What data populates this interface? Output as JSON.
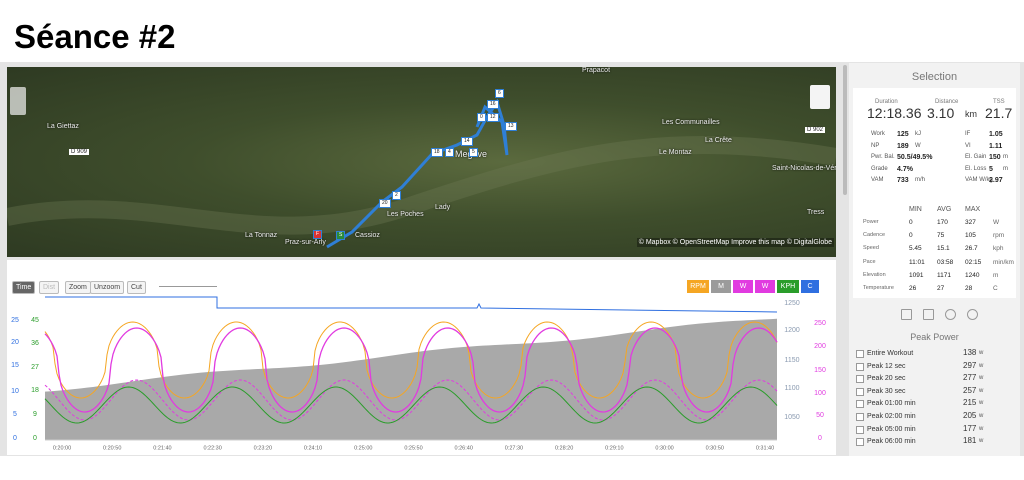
{
  "header": {
    "title": "Séance #2"
  },
  "map": {
    "places": [
      "Prapacot",
      "La Giettaz",
      "D 909",
      "Les Communailles",
      "La Crête",
      "Le Montaz",
      "D 902",
      "Saint-Nicolas-de-Véroce",
      "Megève",
      "Les Poches",
      "Lady",
      "Cassioz",
      "La Tonnaz",
      "Praz-sur-Arly",
      "Tress"
    ],
    "markers": [
      "6",
      "16",
      "0",
      "12",
      "13",
      "18",
      "4",
      "5",
      "14",
      "2",
      "20",
      "F",
      "S"
    ],
    "attribution": "© Mapbox © OpenStreetMap Improve this map © DigitalGlobe"
  },
  "toolbar": {
    "buttons": [
      "Time",
      "Dist",
      "Zoom",
      "Unzoom",
      "Cut"
    ],
    "channels": [
      "RPM",
      "M",
      "W",
      "W",
      "KPH",
      "C"
    ]
  },
  "chart": {
    "axes": {
      "speed": [
        25,
        20,
        15,
        10,
        5,
        0
      ],
      "cadence": [
        45,
        36,
        27,
        18,
        9,
        0
      ],
      "elevation": [
        1250,
        1200,
        1150,
        1100,
        1050
      ],
      "power": [
        250,
        200,
        150,
        100,
        50,
        0
      ]
    },
    "x_ticks": [
      "0:20:00",
      "0:20:50",
      "0:21:40",
      "0:22:30",
      "0:23:20",
      "0:24:10",
      "0:25:00",
      "0:25:50",
      "0:26:40",
      "0:27:30",
      "0:28:20",
      "0:29:10",
      "0:30:00",
      "0:30:50",
      "0:31:40"
    ]
  },
  "sidebar": {
    "title": "Selection",
    "summary": [
      {
        "label": "Duration",
        "value": "12:18.36",
        "unit": ""
      },
      {
        "label": "Distance",
        "value": "3.10",
        "unit": "km"
      },
      {
        "label": "TSS",
        "value": "21.7",
        "unit": ""
      }
    ],
    "metrics": [
      [
        "Work",
        "125",
        "kJ",
        "IF",
        "1.05",
        ""
      ],
      [
        "NP",
        "189",
        "W",
        "VI",
        "1.11",
        ""
      ],
      [
        "Pwr. Bal.",
        "50.5/49.5%",
        "",
        "El. Gain",
        "150",
        "m"
      ],
      [
        "Grade",
        "4.7%",
        "",
        "El. Loss",
        "5",
        "m"
      ],
      [
        "VAM",
        "733",
        "m/h",
        "VAM W/kg",
        "2.97",
        ""
      ]
    ],
    "stats_header": [
      "MIN",
      "AVG",
      "MAX"
    ],
    "stats": [
      [
        "Power",
        "0",
        "170",
        "327",
        "W"
      ],
      [
        "Cadence",
        "0",
        "75",
        "105",
        "rpm"
      ],
      [
        "Speed",
        "5.45",
        "15.1",
        "26.7",
        "kph"
      ],
      [
        "Pace",
        "11:01",
        "03:58",
        "02:15",
        "min/km"
      ],
      [
        "Elevation",
        "1091",
        "1171",
        "1240",
        "m"
      ],
      [
        "Temperature",
        "26",
        "27",
        "28",
        "C"
      ]
    ],
    "peak_title": "Peak Power",
    "peaks": [
      [
        "Entire Workout",
        "138",
        "w"
      ],
      [
        "Peak 12 sec",
        "297",
        "w"
      ],
      [
        "Peak 20 sec",
        "277",
        "w"
      ],
      [
        "Peak 30 sec",
        "257",
        "w"
      ],
      [
        "Peak 01:00 min",
        "215",
        "w"
      ],
      [
        "Peak 02:00 min",
        "205",
        "w"
      ],
      [
        "Peak 05:00 min",
        "177",
        "w"
      ],
      [
        "Peak 06:00 min",
        "181",
        "w"
      ]
    ]
  }
}
